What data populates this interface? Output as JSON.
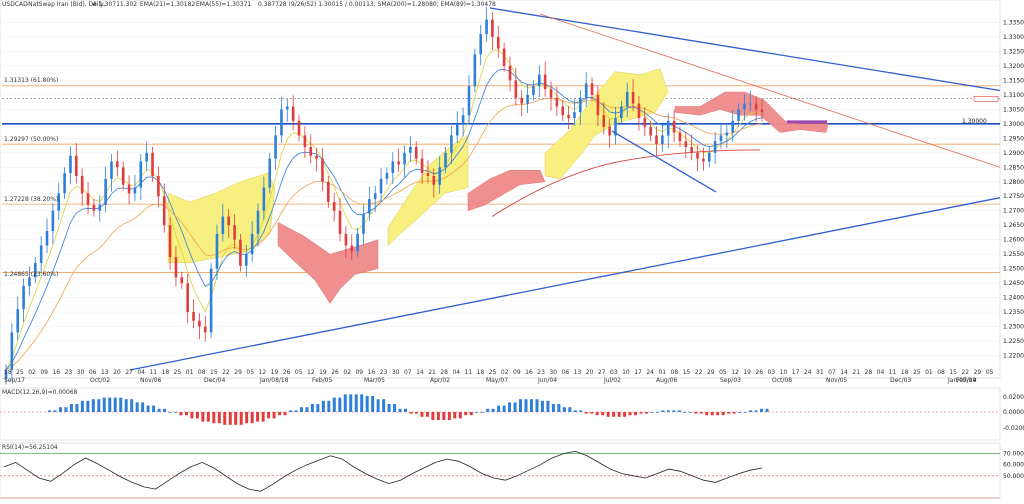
{
  "header": {
    "symbol": "USDCAD",
    "source": "-NatSwap Iran (Bid), Daily,",
    "price_info": "# 1.30711.302",
    "ema_fast": "EMA(21)=1.30182",
    "ema_slow": "EMA(55)=1.30371",
    "ichimoku": "0.387728 (9/26/52) 1.30015 / 0.00113; SMA(200)=1.28080; EMA(89)=1.30478"
  },
  "levels": {
    "fib1": "1.31313 (61.80%)",
    "fib2": "1.29297 (50.00%)",
    "fib3": "1.27228 (38.20%)",
    "fib4": "1.24865 (23.60%)",
    "last_price": "1.30000",
    "current_price": "1.30500"
  },
  "chart_data": {
    "type": "candlestick",
    "y_axis": {
      "min": 1.215,
      "max": 1.34,
      "ticks": [
        "1.33500",
        "1.33000",
        "1.32500",
        "1.32000",
        "1.31500",
        "1.31000",
        "1.30500",
        "1.30000",
        "1.29500",
        "1.29000",
        "1.28500",
        "1.28000",
        "1.27500",
        "1.27000",
        "1.26500",
        "1.26000",
        "1.25500",
        "1.25000",
        "1.24500",
        "1.24000",
        "1.23500",
        "1.23000",
        "1.22500",
        "1.22000"
      ]
    },
    "x_day_ticks": [
      "18",
      "25",
      "02",
      "09",
      "16",
      "23",
      "30",
      "06",
      "13",
      "20",
      "27",
      "04",
      "11",
      "18",
      "25",
      "01",
      "08",
      "15",
      "22",
      "29",
      "05",
      "12",
      "19",
      "26",
      "05",
      "12",
      "19",
      "26",
      "02",
      "09",
      "16",
      "23",
      "30",
      "07",
      "14",
      "21",
      "28",
      "04",
      "11",
      "18",
      "25",
      "02",
      "09",
      "16",
      "23",
      "30",
      "06",
      "13",
      "20",
      "27",
      "03",
      "10",
      "17",
      "24",
      "01",
      "08",
      "15",
      "22",
      "29",
      "05",
      "12",
      "19",
      "26",
      "03",
      "10",
      "17",
      "24",
      "31",
      "07",
      "14",
      "21",
      "28",
      "04",
      "11",
      "18",
      "25",
      "01",
      "08",
      "15",
      "22",
      "29",
      "05",
      "12"
    ],
    "x_month_ticks": [
      "Sep/17",
      "Oct/02",
      "Nov/06",
      "Dec/04",
      "Jan/08/18",
      "Feb/05",
      "Mar/05",
      "Apr/02",
      "May/07",
      "Jun/04",
      "Jul/02",
      "Aug/06",
      "Sep/03",
      "Oct/08",
      "Nov/05",
      "Dec/03",
      "Jan/07/19",
      "Feb/04"
    ],
    "series": [
      {
        "name": "close",
        "values": [
          1.215,
          1.228,
          1.236,
          1.244,
          1.247,
          1.252,
          1.258,
          1.263,
          1.27,
          1.276,
          1.283,
          1.289,
          1.282,
          1.276,
          1.272,
          1.27,
          1.272,
          1.281,
          1.287,
          1.285,
          1.279,
          1.276,
          1.278,
          1.287,
          1.29,
          1.282,
          1.275,
          1.265,
          1.254,
          1.247,
          1.245,
          1.235,
          1.232,
          1.23,
          1.228,
          1.25,
          1.262,
          1.268,
          1.265,
          1.26,
          1.251,
          1.255,
          1.262,
          1.27,
          1.278,
          1.288,
          1.296,
          1.305,
          1.306,
          1.301,
          1.296,
          1.292,
          1.289,
          1.288,
          1.28,
          1.273,
          1.27,
          1.262,
          1.258,
          1.256,
          1.262,
          1.269,
          1.274,
          1.276,
          1.281,
          1.283,
          1.287,
          1.286,
          1.29,
          1.292,
          1.288,
          1.283,
          1.282,
          1.279,
          1.285,
          1.29,
          1.296,
          1.3,
          1.303,
          1.313,
          1.324,
          1.331,
          1.336,
          1.33,
          1.326,
          1.32,
          1.315,
          1.309,
          1.307,
          1.31,
          1.313,
          1.317,
          1.312,
          1.309,
          1.306,
          1.303,
          1.302,
          1.304,
          1.309,
          1.314,
          1.31,
          1.303,
          1.299,
          1.296,
          1.302,
          1.306,
          1.311,
          1.307,
          1.302,
          1.299,
          1.296,
          1.293,
          1.296,
          1.301,
          1.297,
          1.294,
          1.292,
          1.29,
          1.288,
          1.287,
          1.29,
          1.294,
          1.296,
          1.297,
          1.301,
          1.305,
          1.307,
          1.307,
          1.305,
          1.304
        ]
      },
      {
        "name": "MACD histogram",
        "values": [
          0.001,
          0.003,
          0.005,
          0.007,
          0.008,
          0.009,
          0.009,
          0.008,
          0.006,
          0.004,
          0.002,
          0.0,
          -0.002,
          -0.004,
          -0.006,
          -0.007,
          -0.008,
          -0.008,
          -0.007,
          -0.006,
          -0.004,
          -0.002,
          0.001,
          0.003,
          0.005,
          0.007,
          0.009,
          0.011,
          0.011,
          0.01,
          0.008,
          0.005,
          0.002,
          -0.001,
          -0.003,
          -0.005,
          -0.005,
          -0.004,
          -0.002,
          0.0,
          0.002,
          0.004,
          0.006,
          0.008,
          0.008,
          0.007,
          0.005,
          0.003,
          0.001,
          -0.001,
          -0.002,
          -0.003,
          -0.003,
          -0.002,
          -0.001,
          0.0,
          0.001,
          0.001,
          0.0,
          -0.001,
          -0.002,
          -0.002,
          -0.001,
          0.0,
          0.001,
          0.002
        ]
      },
      {
        "name": "RSI",
        "values": [
          58,
          62,
          55,
          48,
          45,
          52,
          60,
          66,
          61,
          55,
          49,
          44,
          40,
          38,
          45,
          52,
          58,
          62,
          57,
          50,
          43,
          38,
          36,
          42,
          49,
          55,
          60,
          64,
          68,
          65,
          58,
          52,
          47,
          43,
          46,
          52,
          57,
          62,
          65,
          63,
          58,
          52,
          48,
          46,
          50,
          55,
          60,
          66,
          70,
          72,
          68,
          62,
          56,
          52,
          50,
          48,
          52,
          56,
          54,
          50,
          46,
          44,
          48,
          52,
          55,
          57
        ]
      }
    ]
  },
  "macd_panel": {
    "label": "MACD(12,26,9)=0.00068",
    "ticks": [
      "0.02000",
      "0.00000",
      "-0.02000"
    ]
  },
  "rsi_panel": {
    "label": "RSI(14)=56.25104",
    "ticks": [
      "70.00000",
      "60.00000",
      "50.00000"
    ]
  },
  "colors": {
    "bull": "#2e7fd8",
    "bear": "#e23b3b",
    "cloud_bull": "#f7f07a",
    "cloud_bear": "#f08a8a",
    "trend_blue": "#2f5fd0",
    "trend_red": "#e8674a",
    "fib": "#f4a15a"
  }
}
